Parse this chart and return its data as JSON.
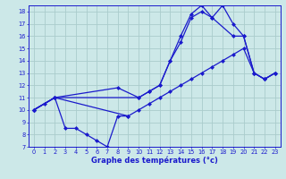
{
  "bg_color": "#cce8e8",
  "grid_color": "#aacccc",
  "line_color": "#1a1acc",
  "xlabel": "Graphe des températures (°c)",
  "xlim": [
    -0.5,
    23.5
  ],
  "ylim": [
    7,
    18.5
  ],
  "yticks": [
    7,
    8,
    9,
    10,
    11,
    12,
    13,
    14,
    15,
    16,
    17,
    18
  ],
  "xticks": [
    0,
    1,
    2,
    3,
    4,
    5,
    6,
    7,
    8,
    9,
    10,
    11,
    12,
    13,
    14,
    15,
    16,
    17,
    18,
    19,
    20,
    21,
    22,
    23
  ],
  "line1_x": [
    0,
    1,
    2,
    3,
    4,
    5,
    6,
    7,
    8,
    9
  ],
  "line1_y": [
    10.0,
    10.5,
    11.0,
    8.5,
    8.5,
    8.0,
    7.5,
    7.0,
    9.5,
    9.5
  ],
  "line2_x": [
    0,
    2,
    9,
    10,
    11,
    12,
    13,
    14,
    15,
    16,
    17,
    18,
    19,
    20,
    21,
    22,
    23
  ],
  "line2_y": [
    10.0,
    11.0,
    9.5,
    10.0,
    10.5,
    11.0,
    11.5,
    12.0,
    12.5,
    13.0,
    13.5,
    14.0,
    14.5,
    15.0,
    13.0,
    12.5,
    13.0
  ],
  "line3_x": [
    0,
    2,
    8,
    10,
    11,
    12,
    13,
    14,
    15,
    16,
    17,
    19,
    20,
    21,
    22,
    23
  ],
  "line3_y": [
    10.0,
    11.0,
    11.8,
    11.0,
    11.5,
    12.0,
    14.0,
    15.5,
    17.5,
    18.0,
    17.5,
    16.0,
    16.0,
    13.0,
    12.5,
    13.0
  ],
  "line4_x": [
    0,
    2,
    10,
    11,
    12,
    13,
    14,
    15,
    16,
    17,
    18,
    19,
    20,
    21,
    22,
    23
  ],
  "line4_y": [
    10.0,
    11.0,
    11.0,
    11.5,
    12.0,
    14.0,
    16.0,
    17.8,
    18.5,
    17.5,
    18.5,
    17.0,
    16.0,
    13.0,
    12.5,
    13.0
  ],
  "marker_size": 2.5,
  "line_width": 0.9
}
